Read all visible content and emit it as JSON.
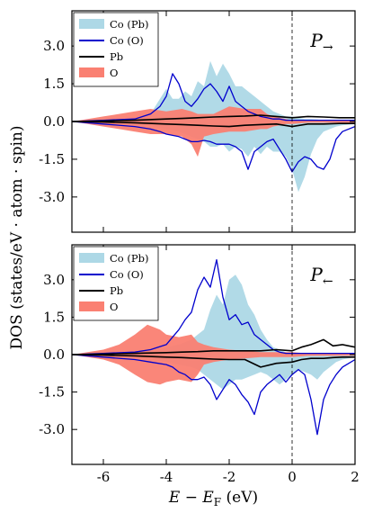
{
  "chart_data": {
    "type": "line",
    "y_axis_label": "DOS (states/eV · atom · spin)",
    "x_axis_label": "E − E",
    "x_axis_label_subscript": "F",
    "x_axis_label_unit": "(eV)",
    "xlim": [
      -7,
      2
    ],
    "ylim": [
      -4.4,
      4.4
    ],
    "x_ticks": [
      -6,
      -4,
      -2,
      0,
      2
    ],
    "y_ticks": [
      -3.0,
      -1.5,
      0.0,
      1.5,
      3.0
    ],
    "y_tick_labels": [
      "-3.0",
      "-1.5",
      "0.0",
      "1.5",
      "3.0"
    ],
    "x_tick_labels": [
      "-6",
      "-4",
      "-2",
      "0",
      "2"
    ],
    "fermi_line_x": 0,
    "legend_location": "upper-left",
    "legend": [
      {
        "label": "Co (Pb)",
        "color": "#add8e6",
        "style": "fill"
      },
      {
        "label": "Co (O)",
        "color": "#0000cd",
        "style": "line"
      },
      {
        "label": "Pb",
        "color": "#000000",
        "style": "line"
      },
      {
        "label": "O",
        "color": "#fa8072",
        "style": "fill"
      }
    ],
    "panels": [
      {
        "label": "P",
        "label_arrow": "→",
        "series": [
          {
            "name": "Co (Pb)",
            "x": [
              -7,
              -6,
              -5,
              -4.6,
              -4.4,
              -4.2,
              -4.0,
              -3.8,
              -3.6,
              -3.4,
              -3.2,
              -3.0,
              -2.8,
              -2.6,
              -2.4,
              -2.2,
              -2.0,
              -1.8,
              -1.6,
              -1.4,
              -1.2,
              -1.0,
              -0.8,
              -0.6,
              -0.4,
              -0.2,
              0.0,
              0.2,
              0.4,
              0.6,
              0.8,
              1.0,
              1.2,
              1.4,
              1.6,
              2.0
            ],
            "up": [
              0,
              0.05,
              0.1,
              0.25,
              0.5,
              0.9,
              1.3,
              0.9,
              0.9,
              1.2,
              1.0,
              1.6,
              1.4,
              2.4,
              1.8,
              2.3,
              1.9,
              1.4,
              1.4,
              1.2,
              1.0,
              0.8,
              0.6,
              0.4,
              0.3,
              0.2,
              0.2,
              0.15,
              0.1,
              0.1,
              0.08,
              0.05,
              0.05,
              0.05,
              0.05,
              0.05
            ],
            "down": [
              0,
              -0.05,
              -0.1,
              -0.15,
              -0.2,
              -0.25,
              -0.3,
              -0.35,
              -0.4,
              -0.5,
              -0.6,
              -0.7,
              -0.8,
              -1.0,
              -1.0,
              -0.9,
              -1.2,
              -1.0,
              -1.1,
              -1.4,
              -1.0,
              -1.3,
              -1.0,
              -1.2,
              -1.2,
              -1.4,
              -1.9,
              -2.8,
              -2.2,
              -1.3,
              -0.7,
              -0.4,
              -0.3,
              -0.2,
              -0.15,
              -0.1
            ]
          },
          {
            "name": "Co (O)",
            "x": [
              -7,
              -6,
              -5,
              -4.5,
              -4.2,
              -4.0,
              -3.8,
              -3.6,
              -3.4,
              -3.2,
              -3.0,
              -2.8,
              -2.6,
              -2.4,
              -2.2,
              -2.0,
              -1.8,
              -1.6,
              -1.4,
              -1.2,
              -1.0,
              -0.8,
              -0.6,
              -0.4,
              -0.2,
              0.0,
              0.2,
              0.4,
              0.6,
              0.8,
              1.0,
              1.2,
              1.4,
              1.6,
              2.0
            ],
            "up": [
              0,
              0.05,
              0.1,
              0.3,
              0.6,
              1.0,
              1.9,
              1.5,
              0.8,
              0.6,
              0.9,
              1.3,
              1.5,
              1.2,
              0.8,
              1.4,
              0.8,
              0.6,
              0.4,
              0.3,
              0.2,
              0.15,
              0.1,
              0.1,
              0.05,
              0.05,
              0.05,
              0.05,
              0.05,
              0.05,
              0.05,
              0.05,
              0.05,
              0.05,
              0.05
            ],
            "down": [
              0,
              -0.1,
              -0.2,
              -0.3,
              -0.4,
              -0.5,
              -0.55,
              -0.6,
              -0.7,
              -0.8,
              -0.8,
              -0.75,
              -0.8,
              -0.9,
              -0.9,
              -0.9,
              -1.0,
              -1.2,
              -1.9,
              -1.2,
              -1.0,
              -0.8,
              -0.7,
              -1.1,
              -1.5,
              -2.0,
              -1.6,
              -1.4,
              -1.5,
              -1.8,
              -1.9,
              -1.5,
              -0.7,
              -0.4,
              -0.2
            ]
          },
          {
            "name": "Pb",
            "x": [
              -7,
              -6,
              -5,
              -4,
              -3.5,
              -3,
              -2.5,
              -2,
              -1.5,
              -1.0,
              -0.5,
              0,
              0.5,
              1,
              1.5,
              2
            ],
            "up": [
              0,
              0.02,
              0.05,
              0.1,
              0.12,
              0.15,
              0.18,
              0.2,
              0.22,
              0.25,
              0.2,
              0.15,
              0.2,
              0.18,
              0.15,
              0.15
            ],
            "down": [
              0,
              -0.02,
              -0.05,
              -0.1,
              -0.12,
              -0.15,
              -0.18,
              -0.2,
              -0.15,
              -0.12,
              -0.1,
              -0.2,
              -0.1,
              -0.1,
              -0.08,
              -0.08
            ]
          },
          {
            "name": "O",
            "x": [
              -7,
              -6.5,
              -6,
              -5.5,
              -5,
              -4.5,
              -4,
              -3.5,
              -3.2,
              -3.0,
              -2.8,
              -2.5,
              -2,
              -1.5,
              -1.0,
              -0.8,
              -0.6,
              -0.4,
              -0.2,
              0,
              0.5,
              1,
              1.5,
              2
            ],
            "up": [
              0,
              0.1,
              0.2,
              0.3,
              0.4,
              0.5,
              0.4,
              0.5,
              0.4,
              0.3,
              0.3,
              0.3,
              0.6,
              0.5,
              0.5,
              0.3,
              0.2,
              0.15,
              0.1,
              0.05,
              0.05,
              0.05,
              0.05,
              0.05
            ],
            "down": [
              0,
              -0.1,
              -0.2,
              -0.3,
              -0.4,
              -0.5,
              -0.5,
              -0.6,
              -0.9,
              -1.4,
              -0.6,
              -0.5,
              -0.4,
              -0.4,
              -0.3,
              -0.3,
              -0.2,
              -0.15,
              -0.1,
              -0.1,
              -0.05,
              -0.05,
              -0.05,
              -0.05
            ]
          }
        ]
      },
      {
        "label": "P",
        "label_arrow": "←",
        "series": [
          {
            "name": "Co (Pb)",
            "x": [
              -7,
              -6,
              -5,
              -4.5,
              -4.0,
              -3.6,
              -3.2,
              -3.0,
              -2.8,
              -2.6,
              -2.4,
              -2.2,
              -2.0,
              -1.8,
              -1.6,
              -1.4,
              -1.2,
              -1.0,
              -0.8,
              -0.6,
              -0.4,
              -0.2,
              0.0,
              0.2,
              0.4,
              0.6,
              0.8,
              1.0,
              1.2,
              1.4,
              1.6,
              2.0
            ],
            "up": [
              0,
              0.05,
              0.1,
              0.2,
              0.3,
              0.4,
              0.6,
              0.8,
              1.0,
              1.8,
              2.4,
              2.0,
              3.0,
              3.2,
              2.8,
              2.0,
              1.6,
              1.0,
              0.6,
              0.3,
              0.2,
              0.1,
              0.05,
              0.05,
              0.05,
              0.05,
              0.05,
              0.05,
              0.05,
              0.05,
              0.05,
              0.05
            ],
            "down": [
              0,
              -0.05,
              -0.1,
              -0.2,
              -0.3,
              -0.4,
              -0.5,
              -0.6,
              -0.8,
              -1.0,
              -1.2,
              -1.4,
              -1.2,
              -1.0,
              -1.0,
              -0.9,
              -0.8,
              -0.7,
              -0.8,
              -1.0,
              -1.2,
              -1.0,
              -0.8,
              -0.6,
              -0.7,
              -0.8,
              -1.0,
              -0.7,
              -0.5,
              -0.3,
              -0.2,
              -0.1
            ]
          },
          {
            "name": "Co (O)",
            "x": [
              -7,
              -6,
              -5,
              -4.5,
              -4.0,
              -3.8,
              -3.6,
              -3.4,
              -3.2,
              -3.0,
              -2.8,
              -2.6,
              -2.4,
              -2.2,
              -2.0,
              -1.8,
              -1.6,
              -1.4,
              -1.2,
              -1.0,
              -0.8,
              -0.6,
              -0.4,
              -0.2,
              0.0,
              0.2,
              0.4,
              0.6,
              0.8,
              1.0,
              1.2,
              1.4,
              1.6,
              2.0
            ],
            "up": [
              0,
              0.05,
              0.1,
              0.2,
              0.4,
              0.7,
              1.0,
              1.4,
              1.7,
              2.6,
              3.1,
              2.7,
              3.8,
              2.3,
              1.4,
              1.6,
              1.2,
              1.3,
              0.8,
              0.6,
              0.4,
              0.2,
              0.1,
              0.05,
              0.05,
              0.05,
              0.05,
              0.05,
              0.05,
              0.05,
              0.05,
              0.05,
              0.05,
              0.05
            ],
            "down": [
              0,
              -0.1,
              -0.2,
              -0.3,
              -0.4,
              -0.5,
              -0.7,
              -0.8,
              -1.0,
              -1.0,
              -0.9,
              -1.2,
              -1.8,
              -1.4,
              -1.0,
              -1.2,
              -1.6,
              -1.9,
              -2.4,
              -1.5,
              -1.2,
              -1.0,
              -0.8,
              -1.1,
              -0.8,
              -0.6,
              -0.8,
              -1.8,
              -3.2,
              -1.8,
              -1.2,
              -0.8,
              -0.5,
              -0.2
            ]
          },
          {
            "name": "Pb",
            "x": [
              -7,
              -6,
              -5,
              -4,
              -3.5,
              -3,
              -2.5,
              -2,
              -1.5,
              -1.0,
              -0.5,
              0,
              0.3,
              0.6,
              1.0,
              1.3,
              1.6,
              2
            ],
            "up": [
              0,
              0.02,
              0.05,
              0.08,
              0.1,
              0.12,
              0.15,
              0.15,
              0.15,
              0.15,
              0.2,
              0.15,
              0.3,
              0.4,
              0.6,
              0.35,
              0.4,
              0.3
            ],
            "down": [
              0,
              -0.02,
              -0.05,
              -0.1,
              -0.12,
              -0.15,
              -0.18,
              -0.2,
              -0.2,
              -0.5,
              -0.35,
              -0.3,
              -0.2,
              -0.15,
              -0.15,
              -0.12,
              -0.1,
              -0.1
            ]
          },
          {
            "name": "O",
            "x": [
              -7,
              -6.5,
              -6,
              -5.5,
              -5,
              -4.6,
              -4.2,
              -4.0,
              -3.6,
              -3.2,
              -3.0,
              -2.8,
              -2.5,
              -2,
              -1.5,
              -1,
              -0.5,
              0,
              0.5,
              1,
              1.5,
              2
            ],
            "up": [
              0,
              0.1,
              0.2,
              0.4,
              0.8,
              1.2,
              1.0,
              0.8,
              0.7,
              0.8,
              0.5,
              0.4,
              0.3,
              0.2,
              0.15,
              0.1,
              0.1,
              0.1,
              0.05,
              0.05,
              0.05,
              0.05
            ],
            "down": [
              0,
              -0.1,
              -0.2,
              -0.4,
              -0.8,
              -1.1,
              -1.2,
              -1.1,
              -1.0,
              -1.1,
              -0.8,
              -0.4,
              -0.3,
              -0.2,
              -0.15,
              -0.1,
              -0.1,
              -0.1,
              -0.05,
              -0.05,
              -0.05,
              -0.05
            ]
          }
        ]
      }
    ]
  }
}
